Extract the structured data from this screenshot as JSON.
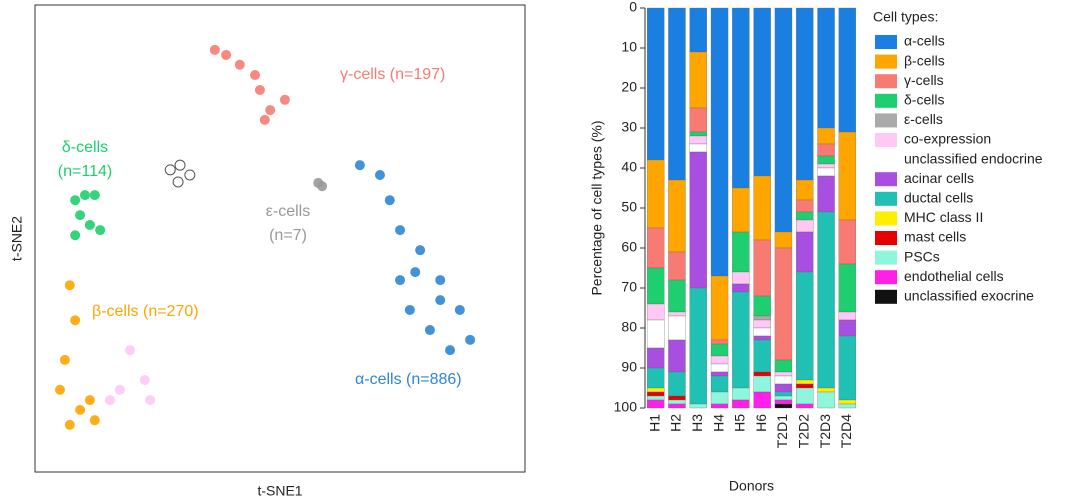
{
  "chart_data": [
    {
      "type": "scatter",
      "x_label": "t-SNE1",
      "y_label": "t-SNE2",
      "xlim": [
        0,
        100
      ],
      "ylim": [
        0,
        100
      ],
      "series": [
        {
          "label": [
            "γ-cells (n=197)"
          ],
          "color": "#f77b72",
          "x": [
            36.7,
            41.8,
            45.9,
            48,
            51,
            44.9,
            39,
            46.9
          ],
          "y": [
            90.4,
            87.2,
            81.8,
            77.5,
            79.7,
            85,
            89.3,
            75.4
          ]
        },
        {
          "label": [
            "δ-cells",
            "(n=114)"
          ],
          "color": "#1fce6e",
          "x": [
            8.2,
            10.2,
            12.2,
            9.2,
            8.2,
            11.2,
            13.3
          ],
          "y": [
            58.2,
            59.3,
            59.3,
            55,
            50.7,
            52.9,
            51.8
          ]
        },
        {
          "color": "#ffffff",
          "x": [
            27.6,
            29.6,
            31.6,
            29.2
          ],
          "y": [
            64.7,
            65.7,
            63.6,
            62.1
          ]
        },
        {
          "label": [
            "ε-cells",
            "(n=7)"
          ],
          "color": "#999999",
          "x": [
            57.8,
            58.6
          ],
          "y": [
            61.9,
            61.2
          ]
        },
        {
          "label": [
            "α-cells (n=886)"
          ],
          "color": "#2e86d6",
          "x": [
            66.3,
            70.4,
            72.4,
            74.5,
            78.6,
            82.7,
            86.7,
            88.8,
            80.6,
            76.5,
            74.5,
            84.7,
            77.6,
            82.7
          ],
          "y": [
            65.7,
            63.6,
            58.2,
            51.8,
            47.5,
            41.1,
            34.7,
            28.3,
            30.4,
            34.7,
            41.1,
            26.1,
            42.8,
            36.8
          ]
        },
        {
          "label": [
            "β-cells (n=270)"
          ],
          "color": "#ffa500",
          "x": [
            7.1,
            8.2,
            6.1,
            5.1,
            9.2,
            12.2,
            7.1,
            11.2
          ],
          "y": [
            40,
            32.5,
            24,
            17.6,
            13.3,
            11.1,
            10.1,
            15.4
          ]
        },
        {
          "color": "#ffc8f5",
          "x": [
            19.4,
            22.4,
            17.3,
            15.3,
            23.5
          ],
          "y": [
            26.1,
            19.7,
            17.6,
            15.4,
            15.4
          ]
        }
      ]
    },
    {
      "type": "bar",
      "stacked": true,
      "y_inverted": true,
      "x_label": "Donors",
      "y_label": "Percentage of cell types (%)",
      "legend_title": "Cell types:",
      "ylim": [
        0,
        100
      ],
      "yticks": [
        0,
        10,
        20,
        30,
        40,
        50,
        60,
        70,
        80,
        90,
        100
      ],
      "categories": [
        "H1",
        "H2",
        "H3",
        "H4",
        "H5",
        "H6",
        "T2D1",
        "T2D2",
        "T2D3",
        "T2D4"
      ],
      "series": [
        {
          "name": "α-cells",
          "color": "#1a7fe0",
          "values": [
            38,
            43,
            11,
            67,
            45,
            42,
            56,
            43,
            30,
            31
          ]
        },
        {
          "name": "β-cells",
          "color": "#ffa500",
          "values": [
            17,
            18,
            14,
            16,
            11,
            16,
            4,
            5,
            4,
            22
          ]
        },
        {
          "name": "γ-cells",
          "color": "#f77b72",
          "values": [
            10,
            7,
            6,
            1,
            0,
            14,
            28,
            3,
            3,
            11
          ]
        },
        {
          "name": "δ-cells",
          "color": "#1fce6e",
          "values": [
            9,
            8,
            1,
            3,
            10,
            5,
            3,
            2,
            2,
            12
          ]
        },
        {
          "name": "ε-cells",
          "color": "#aaaaaa",
          "values": [
            0,
            0,
            0,
            0,
            0,
            1,
            0,
            0,
            0,
            0
          ]
        },
        {
          "name": "co-expression",
          "color": "#ffc8f5",
          "values": [
            4,
            1,
            2,
            2,
            3,
            2,
            1,
            3,
            1,
            2
          ]
        },
        {
          "name": "unclassified endocrine",
          "color": "#ffffff",
          "values": [
            7,
            6,
            2,
            2,
            0,
            2,
            2,
            0,
            2,
            0
          ]
        },
        {
          "name": "acinar cells",
          "color": "#a84ee0",
          "values": [
            5,
            8,
            34,
            1,
            2,
            1,
            2,
            10,
            9,
            4
          ]
        },
        {
          "name": "ductal cells",
          "color": "#20c0b4",
          "values": [
            5,
            6,
            29,
            4,
            24,
            8,
            1,
            27,
            44,
            16
          ]
        },
        {
          "name": "MHC class II",
          "color": "#ffee00",
          "values": [
            1,
            0,
            0,
            0,
            0,
            0,
            0,
            1,
            1,
            1
          ]
        },
        {
          "name": "mast cells",
          "color": "#e60000",
          "values": [
            1,
            1,
            0,
            0,
            0,
            1,
            0,
            1,
            0,
            0
          ]
        },
        {
          "name": "PSCs",
          "color": "#8ff5dc",
          "values": [
            1,
            1,
            1,
            3,
            3,
            4,
            1,
            4,
            4,
            1
          ]
        },
        {
          "name": "endothelial cells",
          "color": "#ff20e8",
          "values": [
            2,
            1,
            0,
            1,
            2,
            4,
            1,
            1,
            0,
            0
          ]
        },
        {
          "name": "unclassified exocrine",
          "color": "#111111",
          "values": [
            0,
            0,
            0,
            0,
            0,
            0,
            1,
            0,
            0,
            0
          ]
        }
      ]
    }
  ]
}
